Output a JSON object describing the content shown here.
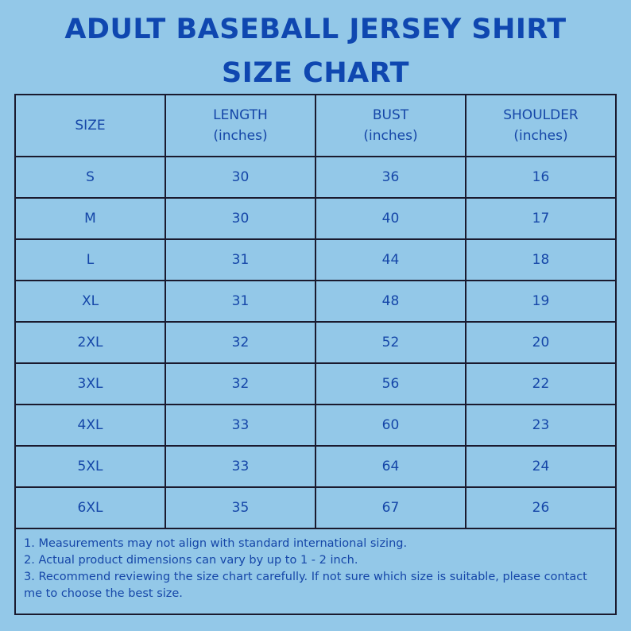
{
  "title_line1": "ADULT BASEBALL JERSEY SHIRT",
  "title_line2": "SIZE CHART",
  "headers": [
    {
      "name": "SIZE",
      "unit": ""
    },
    {
      "name": "LENGTH",
      "unit": "(inches)"
    },
    {
      "name": "BUST",
      "unit": "(inches)"
    },
    {
      "name": "SHOULDER",
      "unit": "(inches)"
    }
  ],
  "rows": [
    [
      "S",
      "30",
      "36",
      "16"
    ],
    [
      "M",
      "30",
      "40",
      "17"
    ],
    [
      "L",
      "31",
      "44",
      "18"
    ],
    [
      "XL",
      "31",
      "48",
      "19"
    ],
    [
      "2XL",
      "32",
      "52",
      "20"
    ],
    [
      "3XL",
      "32",
      "56",
      "22"
    ],
    [
      "4XL",
      "33",
      "60",
      "23"
    ],
    [
      "5XL",
      "33",
      "64",
      "24"
    ],
    [
      "6XL",
      "35",
      "67",
      "26"
    ]
  ],
  "notes": [
    "1. Measurements may not align with standard international sizing.",
    "2. Actual product dimensions can vary by up to 1 - 2 inch.",
    "3. Recommend reviewing the size chart carefully. If not sure which size is suitable, please contact me to choose the best size."
  ],
  "colors": {
    "background": "#93c8e8",
    "text": "#1546a8",
    "border": "#1a1a2e"
  }
}
